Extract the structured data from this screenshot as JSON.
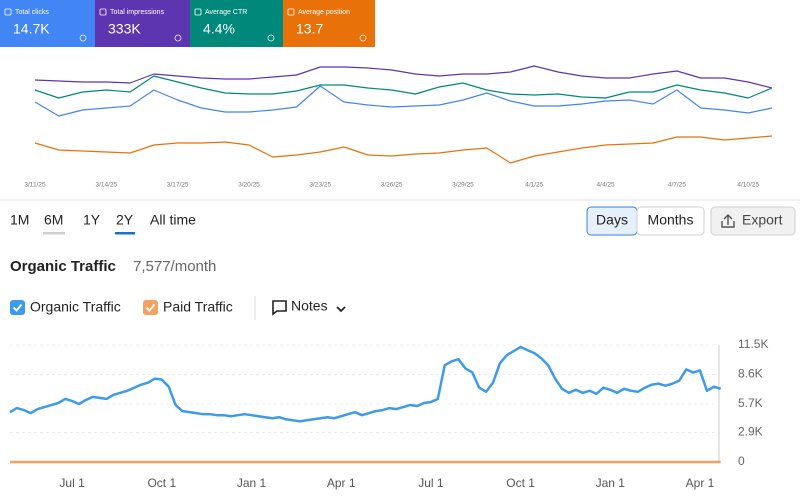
{
  "metrics": [
    {
      "label": "Total clicks",
      "value": "14.7K",
      "color": "#4285f4"
    },
    {
      "label": "Total impressions",
      "value": "333K",
      "color": "#5e35b1"
    },
    {
      "label": "Average CTR",
      "value": "4.4%",
      "color": "#00897b"
    },
    {
      "label": "Average position",
      "value": "13.7",
      "color": "#e8710a"
    }
  ],
  "range_tabs": [
    "1M",
    "6M",
    "1Y",
    "2Y",
    "All time"
  ],
  "selected_range": 3,
  "view_buttons": [
    "Days",
    "Months"
  ],
  "selected_view": 0,
  "export": "Export",
  "title": "Organic Traffic",
  "subtitle": "7,577/month",
  "notes": "Notes",
  "chart_data": [
    {
      "type": "line",
      "ylim": [
        0,
        120
      ],
      "categories": [
        "3/11/25",
        null,
        null,
        "3/14/25",
        null,
        null,
        "3/17/25",
        null,
        null,
        "3/20/25",
        null,
        null,
        "3/23/25",
        null,
        null,
        "3/26/25",
        null,
        null,
        "3/29/25",
        null,
        null,
        "4/1/25",
        null,
        null,
        "4/4/25",
        null,
        null,
        "4/7/25",
        null,
        null,
        "4/10/25",
        null
      ],
      "series": [
        {
          "color": "#5e35b1",
          "values": [
            95,
            94,
            93,
            93,
            92,
            101,
            99,
            97,
            96,
            96,
            98,
            100,
            108,
            108,
            107,
            105,
            101,
            99,
            101,
            101,
            103,
            109,
            103,
            99,
            97,
            97,
            101,
            104,
            97,
            97,
            93,
            87
          ]
        },
        {
          "color": "#00897b",
          "values": [
            85,
            77,
            83,
            85,
            83,
            99,
            93,
            87,
            82,
            81,
            81,
            84,
            90,
            90,
            87,
            85,
            81,
            88,
            92,
            85,
            81,
            80,
            81,
            78,
            77,
            83,
            83,
            90,
            85,
            82,
            77,
            87
          ]
        },
        {
          "color": "#4285f4",
          "values": [
            73,
            59,
            65,
            67,
            69,
            85,
            75,
            67,
            63,
            63,
            65,
            68,
            89,
            73,
            70,
            68,
            69,
            70,
            75,
            82,
            74,
            69,
            69,
            71,
            74,
            75,
            71,
            85,
            67,
            65,
            62,
            67
          ]
        },
        {
          "color": "#e8710a",
          "values": [
            32,
            25,
            24,
            23,
            22,
            30,
            32,
            32,
            33,
            30,
            18,
            20,
            23,
            28,
            20,
            19,
            21,
            22,
            25,
            27,
            12,
            19,
            23,
            27,
            30,
            31,
            32,
            38,
            38,
            35,
            37,
            39
          ]
        }
      ]
    },
    {
      "type": "line",
      "ylim": [
        0,
        11500
      ],
      "yticks": [
        0,
        {
          "value": 2900,
          "label": "2.9K"
        },
        {
          "value": 5700,
          "label": "5.7K"
        },
        {
          "value": 8600,
          "label": "8.6K"
        },
        {
          "value": 11500,
          "label": "11.5K"
        }
      ],
      "categories": [
        null,
        null,
        null,
        null,
        null,
        null,
        null,
        null,
        null,
        "Jul 1",
        null,
        null,
        null,
        null,
        null,
        null,
        null,
        null,
        null,
        null,
        null,
        null,
        "Oct 1",
        null,
        null,
        null,
        null,
        null,
        null,
        null,
        null,
        null,
        null,
        null,
        null,
        "Jan 1",
        null,
        null,
        null,
        null,
        null,
        null,
        null,
        null,
        null,
        null,
        null,
        null,
        "Apr 1",
        null,
        null,
        null,
        null,
        null,
        null,
        null,
        null,
        null,
        null,
        null,
        null,
        "Jul 1",
        null,
        null,
        null,
        null,
        null,
        null,
        null,
        null,
        null,
        null,
        null,
        null,
        "Oct 1",
        null,
        null,
        null,
        null,
        null,
        null,
        null,
        null,
        null,
        null,
        null,
        null,
        "Jan 1",
        null,
        null,
        null,
        null,
        null,
        null,
        null,
        null,
        null,
        null,
        null,
        null,
        "Apr 1",
        null,
        null,
        null
      ],
      "series": [
        {
          "name": "Organic Traffic",
          "color": "#3d9be9",
          "values": [
            4900,
            5300,
            5100,
            4800,
            5200,
            5400,
            5600,
            5800,
            6200,
            6000,
            5700,
            6100,
            6400,
            6300,
            6200,
            6600,
            6800,
            7000,
            7300,
            7600,
            7800,
            8200,
            8100,
            7400,
            5600,
            5000,
            4900,
            4800,
            4700,
            4700,
            4600,
            4600,
            4500,
            4600,
            4700,
            4600,
            4500,
            4400,
            4300,
            4400,
            4200,
            4100,
            4000,
            4100,
            4200,
            4300,
            4400,
            4300,
            4500,
            4700,
            4900,
            4600,
            4800,
            5000,
            5100,
            5300,
            5200,
            5400,
            5600,
            5500,
            5800,
            5900,
            6200,
            9500,
            9900,
            10100,
            9200,
            8800,
            7300,
            6900,
            7800,
            9700,
            10500,
            10900,
            11300,
            11000,
            10700,
            10200,
            9500,
            8200,
            7200,
            6800,
            7100,
            6800,
            7000,
            6700,
            7300,
            7100,
            6800,
            7200,
            7000,
            6900,
            7300,
            7600,
            7700,
            7500,
            7700,
            8000,
            9100,
            8800,
            9000,
            7000,
            7400,
            7200
          ]
        },
        {
          "name": "Paid Traffic",
          "color": "#f4a261",
          "values": [
            0,
            0,
            0,
            0,
            0,
            0,
            0,
            0,
            0,
            0,
            0,
            0,
            0,
            0,
            0,
            0,
            0,
            0,
            0,
            0,
            0,
            0,
            0,
            0,
            0,
            0,
            0,
            0,
            0,
            0,
            0,
            0,
            0,
            0,
            0,
            0,
            0,
            0,
            0,
            0,
            0,
            0,
            0,
            0,
            0,
            0,
            0,
            0,
            0,
            0,
            0,
            0,
            0,
            0,
            0,
            0,
            0,
            0,
            0,
            0,
            0,
            0,
            0,
            0,
            0,
            0,
            0,
            0,
            0,
            0,
            0,
            0,
            0,
            0,
            0,
            0,
            0,
            0,
            0,
            0,
            0,
            0,
            0,
            0,
            0,
            0,
            0,
            0,
            0,
            0,
            0,
            0,
            0,
            0,
            0,
            0,
            0,
            0,
            0,
            0,
            0,
            0,
            0,
            0
          ]
        }
      ]
    }
  ]
}
